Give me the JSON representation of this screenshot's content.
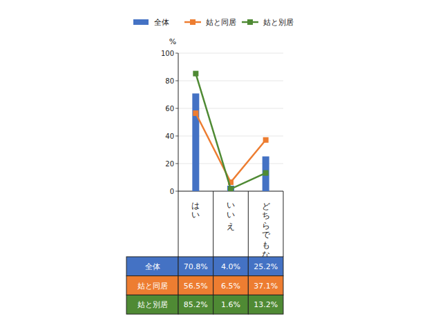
{
  "chart_data": {
    "type": "bar",
    "y_label": "%",
    "categories": [
      "はい",
      "いいえ",
      "どちらでもない"
    ],
    "series": [
      {
        "name": "全体",
        "type": "bar",
        "color": "#4472c4",
        "values": [
          70.8,
          4.0,
          25.2
        ],
        "value_labels": [
          "70.8%",
          "4.0%",
          "25.2%"
        ]
      },
      {
        "name": "姑と同居",
        "type": "line",
        "marker": "square",
        "color": "#ed7d31",
        "values": [
          56.5,
          6.5,
          37.1
        ],
        "value_labels": [
          "56.5%",
          "6.5%",
          "37.1%"
        ]
      },
      {
        "name": "姑と別居",
        "type": "line",
        "marker": "square",
        "color": "#4f8a34",
        "values": [
          85.2,
          1.6,
          13.2
        ],
        "value_labels": [
          "85.2%",
          "1.6%",
          "13.2%"
        ]
      }
    ],
    "ylim": [
      0,
      100
    ],
    "yticks": [
      0,
      20,
      40,
      60,
      80,
      100
    ],
    "grid": true,
    "legend": "top",
    "data_labels": true
  }
}
